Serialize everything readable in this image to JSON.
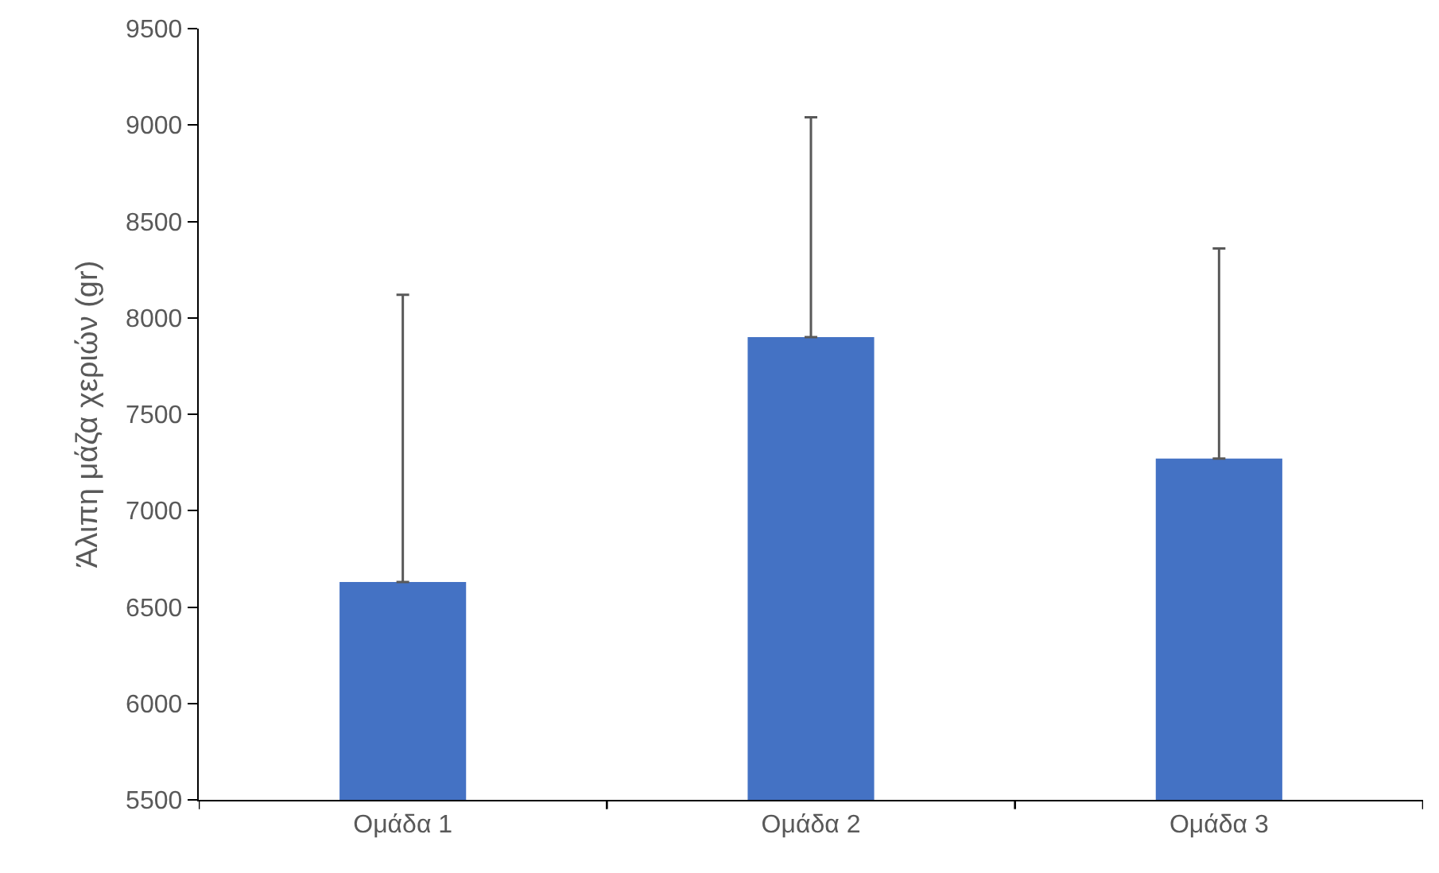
{
  "chart_data": {
    "type": "bar",
    "ylabel": "Άλιπη μάζα χεριών (gr)",
    "categories": [
      "Ομάδα 1",
      "Ομάδα 2",
      "Ομάδα 3"
    ],
    "values": [
      6630,
      7900,
      7270
    ],
    "color": "#4472c4",
    "errors": [
      [
        6630,
        8120
      ],
      [
        7900,
        9040
      ],
      [
        7270,
        8360
      ]
    ],
    "ylim": [
      5500,
      9500
    ],
    "yticks": [
      5500,
      6000,
      6500,
      7000,
      7500,
      8000,
      8500,
      9000,
      9500
    ],
    "grid": false
  }
}
